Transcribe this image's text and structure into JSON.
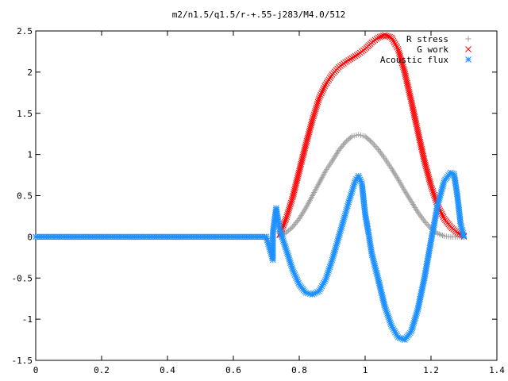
{
  "chart_data": {
    "type": "scatter",
    "title": "m2/n1.5/q1.5/r-+.55-j283/M4.0/512",
    "xlabel": "",
    "ylabel": "",
    "xlim": [
      0,
      1.4
    ],
    "ylim": [
      -1.5,
      2.5
    ],
    "xticks": [
      "0",
      "0.2",
      "0.4",
      "0.6",
      "0.8",
      "1",
      "1.2",
      "1.4"
    ],
    "yticks": [
      "2.5",
      "2",
      "1.5",
      "1",
      "0.5",
      "0",
      "-0.5",
      "-1",
      "-1.5"
    ],
    "grid": false,
    "legend": "top-right",
    "series": [
      {
        "name": "R stress",
        "marker": "+",
        "color": "#a0a0a0",
        "points": [
          [
            0.74,
            0.0
          ],
          [
            0.76,
            0.05
          ],
          [
            0.78,
            0.12
          ],
          [
            0.8,
            0.22
          ],
          [
            0.82,
            0.35
          ],
          [
            0.84,
            0.5
          ],
          [
            0.86,
            0.65
          ],
          [
            0.88,
            0.8
          ],
          [
            0.9,
            0.92
          ],
          [
            0.92,
            1.05
          ],
          [
            0.94,
            1.15
          ],
          [
            0.96,
            1.22
          ],
          [
            0.98,
            1.24
          ],
          [
            1.0,
            1.22
          ],
          [
            1.02,
            1.15
          ],
          [
            1.04,
            1.06
          ],
          [
            1.06,
            0.95
          ],
          [
            1.08,
            0.83
          ],
          [
            1.1,
            0.7
          ],
          [
            1.12,
            0.56
          ],
          [
            1.14,
            0.43
          ],
          [
            1.16,
            0.3
          ],
          [
            1.18,
            0.19
          ],
          [
            1.2,
            0.1
          ],
          [
            1.22,
            0.04
          ],
          [
            1.24,
            0.01
          ],
          [
            1.26,
            0.0
          ],
          [
            1.28,
            0.0
          ],
          [
            1.3,
            0.0
          ]
        ]
      },
      {
        "name": "G work",
        "marker": "x",
        "color": "#ff0000",
        "points": [
          [
            0.74,
            0.02
          ],
          [
            0.76,
            0.22
          ],
          [
            0.78,
            0.48
          ],
          [
            0.8,
            0.8
          ],
          [
            0.82,
            1.12
          ],
          [
            0.84,
            1.42
          ],
          [
            0.86,
            1.68
          ],
          [
            0.88,
            1.85
          ],
          [
            0.9,
            1.97
          ],
          [
            0.92,
            2.06
          ],
          [
            0.94,
            2.12
          ],
          [
            0.96,
            2.17
          ],
          [
            0.98,
            2.22
          ],
          [
            1.0,
            2.28
          ],
          [
            1.02,
            2.36
          ],
          [
            1.04,
            2.42
          ],
          [
            1.06,
            2.45
          ],
          [
            1.08,
            2.42
          ],
          [
            1.1,
            2.28
          ],
          [
            1.12,
            2.0
          ],
          [
            1.14,
            1.65
          ],
          [
            1.16,
            1.28
          ],
          [
            1.18,
            0.92
          ],
          [
            1.2,
            0.62
          ],
          [
            1.22,
            0.38
          ],
          [
            1.24,
            0.22
          ],
          [
            1.26,
            0.12
          ],
          [
            1.28,
            0.05
          ],
          [
            1.3,
            0.01
          ]
        ]
      },
      {
        "name": "Acoustic flux",
        "marker": "*",
        "color": "#1e90ff",
        "points": [
          [
            0.0,
            0.0
          ],
          [
            0.05,
            0.0
          ],
          [
            0.1,
            0.0
          ],
          [
            0.15,
            0.0
          ],
          [
            0.2,
            0.0
          ],
          [
            0.25,
            0.0
          ],
          [
            0.3,
            0.0
          ],
          [
            0.35,
            0.0
          ],
          [
            0.4,
            0.0
          ],
          [
            0.45,
            0.0
          ],
          [
            0.5,
            0.0
          ],
          [
            0.55,
            0.0
          ],
          [
            0.6,
            0.0
          ],
          [
            0.65,
            0.0
          ],
          [
            0.7,
            0.0
          ],
          [
            0.72,
            -0.28
          ],
          [
            0.72,
            0.05
          ],
          [
            0.73,
            0.35
          ],
          [
            0.74,
            0.1
          ],
          [
            0.76,
            -0.15
          ],
          [
            0.78,
            -0.4
          ],
          [
            0.8,
            -0.58
          ],
          [
            0.82,
            -0.68
          ],
          [
            0.84,
            -0.7
          ],
          [
            0.86,
            -0.66
          ],
          [
            0.88,
            -0.52
          ],
          [
            0.9,
            -0.28
          ],
          [
            0.92,
            0.0
          ],
          [
            0.94,
            0.28
          ],
          [
            0.95,
            0.42
          ],
          [
            0.96,
            0.55
          ],
          [
            0.97,
            0.68
          ],
          [
            0.98,
            0.74
          ],
          [
            0.99,
            0.65
          ],
          [
            1.0,
            0.28
          ],
          [
            1.01,
            0.05
          ],
          [
            1.02,
            -0.2
          ],
          [
            1.04,
            -0.52
          ],
          [
            1.06,
            -0.85
          ],
          [
            1.08,
            -1.08
          ],
          [
            1.1,
            -1.22
          ],
          [
            1.12,
            -1.25
          ],
          [
            1.14,
            -1.15
          ],
          [
            1.16,
            -0.88
          ],
          [
            1.18,
            -0.5
          ],
          [
            1.2,
            -0.05
          ],
          [
            1.22,
            0.38
          ],
          [
            1.24,
            0.68
          ],
          [
            1.26,
            0.78
          ],
          [
            1.27,
            0.76
          ],
          [
            1.28,
            0.5
          ],
          [
            1.29,
            0.15
          ],
          [
            1.3,
            0.0
          ]
        ]
      }
    ]
  }
}
